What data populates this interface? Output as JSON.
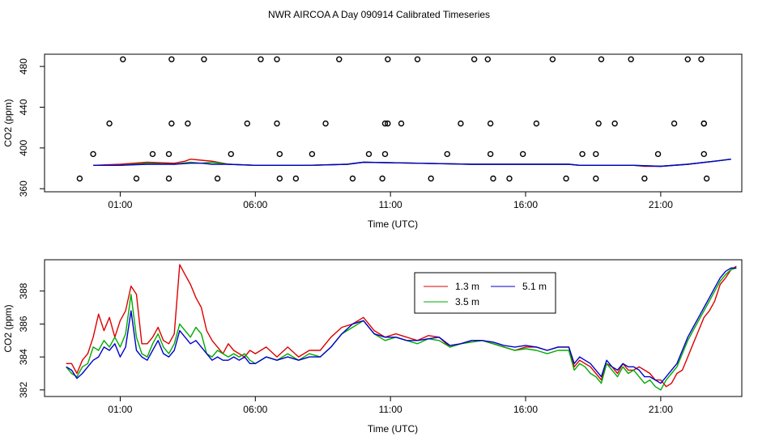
{
  "title": "NWR AIRCOA A  Day 090914  Calibrated Timeseries",
  "chart_data": [
    {
      "type": "line",
      "xlabel": "Time (UTC)",
      "ylabel": "CO2 (ppm)",
      "x_ticks": [
        {
          "hour": 1,
          "label": "01:00"
        },
        {
          "hour": 6,
          "label": "06:00"
        },
        {
          "hour": 11,
          "label": "11:00"
        },
        {
          "hour": 16,
          "label": "16:00"
        },
        {
          "hour": 21,
          "label": "21:00"
        }
      ],
      "xlim_hours": [
        -1.8,
        24.0
      ],
      "ylim": [
        357,
        492
      ],
      "y_ticks": [
        360,
        400,
        440,
        480
      ],
      "series_colors": [
        "#dd0000",
        "#00aa00",
        "#0000cc"
      ],
      "line_series": [
        {
          "hours": [
            0.0,
            1.0,
            2.0,
            3.0,
            3.4,
            3.6,
            4.0,
            4.4,
            5.0,
            6.0,
            8.0,
            9.4,
            10.0,
            12.0,
            14.0,
            16.0,
            17.6,
            18.0,
            19.0,
            20.0,
            20.4,
            21.0,
            22.0,
            23.0,
            23.6
          ],
          "values": [
            383,
            384,
            386,
            385,
            387,
            389,
            388,
            387,
            384,
            383,
            383,
            384,
            386,
            385,
            384,
            384,
            384,
            383,
            383,
            383,
            382,
            382,
            384,
            387,
            389
          ]
        },
        {
          "hours": [
            0.0,
            1.0,
            2.0,
            3.0,
            3.6,
            4.0,
            4.4,
            5.0,
            6.0,
            8.0,
            9.4,
            10.0,
            12.0,
            14.0,
            16.0,
            17.6,
            18.0,
            19.0,
            20.0,
            21.0,
            22.0,
            23.0,
            23.6
          ],
          "values": [
            383,
            383,
            385,
            384,
            386,
            385,
            386,
            384,
            383,
            383,
            384,
            386,
            385,
            384,
            384,
            384,
            383,
            383,
            383,
            382,
            384,
            387,
            389
          ]
        },
        {
          "hours": [
            0.0,
            1.0,
            2.0,
            3.0,
            3.6,
            4.0,
            4.4,
            5.0,
            6.0,
            8.0,
            9.4,
            10.0,
            12.0,
            14.0,
            16.0,
            17.6,
            18.0,
            19.0,
            20.0,
            21.0,
            22.0,
            23.0,
            23.6
          ],
          "values": [
            383,
            383,
            384,
            384,
            385,
            385,
            384,
            384,
            383,
            383,
            384,
            386,
            385,
            384,
            384,
            384,
            383,
            383,
            383,
            382,
            384,
            387,
            389
          ]
        }
      ],
      "points": [
        {
          "hour": -0.5,
          "value": 370
        },
        {
          "hour": 0.0,
          "value": 394
        },
        {
          "hour": 0.6,
          "value": 424
        },
        {
          "hour": 1.1,
          "value": 487
        },
        {
          "hour": 1.6,
          "value": 370
        },
        {
          "hour": 2.2,
          "value": 394
        },
        {
          "hour": 2.8,
          "value": 370
        },
        {
          "hour": 2.8,
          "value": 394
        },
        {
          "hour": 2.9,
          "value": 424
        },
        {
          "hour": 2.9,
          "value": 487
        },
        {
          "hour": 3.5,
          "value": 424
        },
        {
          "hour": 4.1,
          "value": 487
        },
        {
          "hour": 4.6,
          "value": 370
        },
        {
          "hour": 5.1,
          "value": 394
        },
        {
          "hour": 5.7,
          "value": 424
        },
        {
          "hour": 6.2,
          "value": 487
        },
        {
          "hour": 6.8,
          "value": 487
        },
        {
          "hour": 6.8,
          "value": 424
        },
        {
          "hour": 6.9,
          "value": 394
        },
        {
          "hour": 6.9,
          "value": 370
        },
        {
          "hour": 7.5,
          "value": 370
        },
        {
          "hour": 8.1,
          "value": 394
        },
        {
          "hour": 8.6,
          "value": 424
        },
        {
          "hour": 9.1,
          "value": 487
        },
        {
          "hour": 9.6,
          "value": 370
        },
        {
          "hour": 10.2,
          "value": 394
        },
        {
          "hour": 10.7,
          "value": 370
        },
        {
          "hour": 10.8,
          "value": 394
        },
        {
          "hour": 10.8,
          "value": 424
        },
        {
          "hour": 10.9,
          "value": 424
        },
        {
          "hour": 10.9,
          "value": 487
        },
        {
          "hour": 11.4,
          "value": 424
        },
        {
          "hour": 12.0,
          "value": 487
        },
        {
          "hour": 12.5,
          "value": 370
        },
        {
          "hour": 13.1,
          "value": 394
        },
        {
          "hour": 13.6,
          "value": 424
        },
        {
          "hour": 14.1,
          "value": 487
        },
        {
          "hour": 14.6,
          "value": 487
        },
        {
          "hour": 14.7,
          "value": 424
        },
        {
          "hour": 14.7,
          "value": 394
        },
        {
          "hour": 14.8,
          "value": 370
        },
        {
          "hour": 15.4,
          "value": 370
        },
        {
          "hour": 15.9,
          "value": 394
        },
        {
          "hour": 16.4,
          "value": 424
        },
        {
          "hour": 17.0,
          "value": 487
        },
        {
          "hour": 17.5,
          "value": 370
        },
        {
          "hour": 18.1,
          "value": 394
        },
        {
          "hour": 18.6,
          "value": 370
        },
        {
          "hour": 18.6,
          "value": 394
        },
        {
          "hour": 18.7,
          "value": 424
        },
        {
          "hour": 18.8,
          "value": 487
        },
        {
          "hour": 19.3,
          "value": 424
        },
        {
          "hour": 19.9,
          "value": 487
        },
        {
          "hour": 20.4,
          "value": 370
        },
        {
          "hour": 20.9,
          "value": 394
        },
        {
          "hour": 21.5,
          "value": 424
        },
        {
          "hour": 22.0,
          "value": 487
        },
        {
          "hour": 22.5,
          "value": 487
        },
        {
          "hour": 22.6,
          "value": 424
        },
        {
          "hour": 22.6,
          "value": 424
        },
        {
          "hour": 22.6,
          "value": 394
        },
        {
          "hour": 22.7,
          "value": 370
        }
      ]
    },
    {
      "type": "line",
      "xlabel": "Time (UTC)",
      "ylabel": "CO2 (ppm)",
      "x_ticks": [
        {
          "hour": 1,
          "label": "01:00"
        },
        {
          "hour": 6,
          "label": "06:00"
        },
        {
          "hour": 11,
          "label": "11:00"
        },
        {
          "hour": 16,
          "label": "16:00"
        },
        {
          "hour": 21,
          "label": "21:00"
        }
      ],
      "xlim_hours": [
        -1.8,
        24.0
      ],
      "ylim": [
        381.6,
        389.9
      ],
      "y_ticks": [
        382,
        384,
        386,
        388
      ],
      "legend": {
        "position": "top-center"
      },
      "series": [
        {
          "name": "1.3 m",
          "color": "#dd0000",
          "hours": [
            -1.0,
            -0.8,
            -0.6,
            -0.4,
            -0.2,
            0.0,
            0.2,
            0.4,
            0.6,
            0.8,
            1.0,
            1.2,
            1.4,
            1.6,
            1.8,
            2.0,
            2.2,
            2.4,
            2.6,
            2.8,
            3.0,
            3.2,
            3.4,
            3.6,
            3.8,
            4.0,
            4.2,
            4.4,
            4.6,
            4.8,
            5.0,
            5.2,
            5.4,
            5.6,
            5.8,
            6.0,
            6.4,
            6.8,
            7.2,
            7.6,
            8.0,
            8.4,
            8.8,
            9.2,
            9.6,
            10.0,
            10.4,
            10.8,
            11.2,
            11.6,
            12.0,
            12.4,
            12.8,
            13.2,
            13.6,
            14.0,
            14.4,
            14.8,
            15.2,
            15.6,
            16.0,
            16.4,
            16.8,
            17.2,
            17.6,
            17.8,
            18.0,
            18.2,
            18.4,
            18.6,
            18.8,
            19.0,
            19.2,
            19.4,
            19.6,
            19.8,
            20.0,
            20.2,
            20.4,
            20.6,
            20.8,
            21.0,
            21.2,
            21.4,
            21.6,
            21.8,
            22.0,
            22.2,
            22.4,
            22.6,
            22.8,
            23.0,
            23.2,
            23.4,
            23.6,
            23.8
          ],
          "values": [
            383.6,
            383.6,
            383.0,
            383.8,
            384.2,
            385.2,
            386.6,
            385.6,
            386.4,
            385.2,
            386.2,
            386.8,
            388.3,
            387.8,
            384.8,
            384.8,
            385.2,
            385.8,
            385.0,
            384.8,
            385.4,
            389.6,
            389.0,
            388.4,
            387.6,
            387.0,
            385.6,
            385.0,
            384.6,
            384.2,
            384.8,
            384.4,
            384.2,
            384.0,
            384.4,
            384.2,
            384.6,
            384.0,
            384.6,
            384.0,
            384.4,
            384.4,
            385.2,
            385.8,
            386.0,
            386.4,
            385.6,
            385.2,
            385.4,
            385.2,
            385.0,
            385.3,
            385.2,
            384.6,
            384.8,
            385.0,
            385.0,
            384.8,
            384.6,
            384.4,
            384.6,
            384.6,
            384.4,
            384.6,
            384.6,
            383.4,
            383.8,
            383.6,
            383.4,
            383.0,
            382.6,
            383.6,
            383.4,
            383.0,
            383.6,
            383.2,
            383.2,
            383.4,
            383.2,
            383.0,
            382.6,
            382.6,
            382.2,
            382.4,
            383.0,
            383.2,
            384.0,
            384.8,
            385.6,
            386.4,
            386.8,
            387.4,
            388.4,
            388.8,
            389.3,
            389.5
          ]
        },
        {
          "name": "3.5 m",
          "color": "#00aa00",
          "hours": [
            -1.0,
            -0.8,
            -0.6,
            -0.4,
            -0.2,
            0.0,
            0.2,
            0.4,
            0.6,
            0.8,
            1.0,
            1.2,
            1.4,
            1.6,
            1.8,
            2.0,
            2.2,
            2.4,
            2.6,
            2.8,
            3.0,
            3.2,
            3.4,
            3.6,
            3.8,
            4.0,
            4.2,
            4.4,
            4.6,
            4.8,
            5.0,
            5.2,
            5.4,
            5.6,
            5.8,
            6.0,
            6.4,
            6.8,
            7.2,
            7.6,
            8.0,
            8.4,
            8.8,
            9.2,
            9.6,
            10.0,
            10.4,
            10.8,
            11.2,
            11.6,
            12.0,
            12.4,
            12.8,
            13.2,
            13.6,
            14.0,
            14.4,
            14.8,
            15.2,
            15.6,
            16.0,
            16.4,
            16.8,
            17.2,
            17.6,
            17.8,
            18.0,
            18.2,
            18.4,
            18.6,
            18.8,
            19.0,
            19.2,
            19.4,
            19.6,
            19.8,
            20.0,
            20.2,
            20.4,
            20.6,
            20.8,
            21.0,
            21.2,
            21.4,
            21.6,
            21.8,
            22.0,
            22.2,
            22.4,
            22.6,
            22.8,
            23.0,
            23.2,
            23.4,
            23.6,
            23.8
          ],
          "values": [
            383.4,
            383.0,
            382.8,
            383.4,
            383.6,
            384.6,
            384.4,
            385.0,
            384.6,
            385.2,
            384.6,
            385.4,
            387.8,
            385.2,
            384.2,
            384.0,
            384.8,
            385.4,
            384.6,
            384.2,
            384.8,
            386.0,
            385.6,
            385.2,
            385.8,
            385.4,
            384.2,
            384.0,
            384.4,
            384.2,
            384.0,
            384.2,
            384.0,
            384.2,
            383.8,
            383.6,
            384.0,
            383.8,
            384.2,
            383.8,
            384.2,
            384.0,
            384.6,
            385.4,
            385.8,
            386.2,
            385.4,
            385.0,
            385.2,
            385.0,
            384.8,
            385.1,
            385.0,
            384.6,
            384.8,
            384.9,
            385.0,
            384.8,
            384.6,
            384.4,
            384.5,
            384.4,
            384.2,
            384.4,
            384.4,
            383.2,
            383.6,
            383.4,
            383.0,
            382.8,
            382.4,
            383.6,
            383.2,
            382.8,
            383.4,
            383.0,
            383.2,
            382.8,
            382.4,
            382.6,
            382.2,
            382.0,
            382.6,
            383.0,
            383.4,
            384.2,
            385.0,
            385.6,
            386.2,
            386.8,
            387.4,
            388.0,
            388.6,
            389.0,
            389.3,
            389.4
          ]
        },
        {
          "name": "5.1 m",
          "color": "#0000cc",
          "hours": [
            -1.0,
            -0.8,
            -0.6,
            -0.4,
            -0.2,
            0.0,
            0.2,
            0.4,
            0.6,
            0.8,
            1.0,
            1.2,
            1.4,
            1.6,
            1.8,
            2.0,
            2.2,
            2.4,
            2.6,
            2.8,
            3.0,
            3.2,
            3.4,
            3.6,
            3.8,
            4.0,
            4.2,
            4.4,
            4.6,
            4.8,
            5.0,
            5.2,
            5.4,
            5.6,
            5.8,
            6.0,
            6.4,
            6.8,
            7.2,
            7.6,
            8.0,
            8.4,
            8.8,
            9.2,
            9.6,
            10.0,
            10.4,
            10.8,
            11.2,
            11.6,
            12.0,
            12.4,
            12.8,
            13.2,
            13.6,
            14.0,
            14.4,
            14.8,
            15.2,
            15.6,
            16.0,
            16.4,
            16.8,
            17.2,
            17.6,
            17.8,
            18.0,
            18.2,
            18.4,
            18.6,
            18.8,
            19.0,
            19.2,
            19.4,
            19.6,
            19.8,
            20.0,
            20.2,
            20.4,
            20.6,
            20.8,
            21.0,
            21.2,
            21.4,
            21.6,
            21.8,
            22.0,
            22.2,
            22.4,
            22.6,
            22.8,
            23.0,
            23.2,
            23.4,
            23.6,
            23.8
          ],
          "values": [
            383.4,
            383.2,
            382.7,
            383.0,
            383.4,
            383.8,
            384.0,
            384.6,
            384.4,
            384.8,
            384.0,
            384.6,
            386.8,
            384.4,
            384.0,
            383.8,
            384.4,
            385.0,
            384.2,
            384.0,
            384.4,
            385.6,
            385.2,
            384.8,
            385.0,
            384.6,
            384.2,
            383.8,
            384.0,
            383.8,
            383.8,
            384.0,
            383.8,
            384.0,
            383.6,
            383.6,
            384.0,
            383.8,
            384.0,
            383.8,
            384.0,
            384.0,
            384.6,
            385.4,
            386.0,
            386.2,
            385.4,
            385.2,
            385.2,
            385.0,
            385.0,
            385.1,
            385.2,
            384.7,
            384.8,
            385.0,
            385.0,
            384.9,
            384.7,
            384.6,
            384.7,
            384.6,
            384.4,
            384.6,
            384.6,
            383.6,
            384.0,
            383.8,
            383.6,
            383.2,
            382.8,
            383.8,
            383.4,
            383.2,
            383.6,
            383.4,
            383.4,
            383.2,
            382.8,
            382.8,
            382.6,
            382.4,
            382.8,
            383.2,
            383.6,
            384.4,
            385.2,
            385.8,
            386.4,
            387.0,
            387.6,
            388.2,
            388.8,
            389.2,
            389.4,
            389.4
          ]
        }
      ]
    }
  ]
}
